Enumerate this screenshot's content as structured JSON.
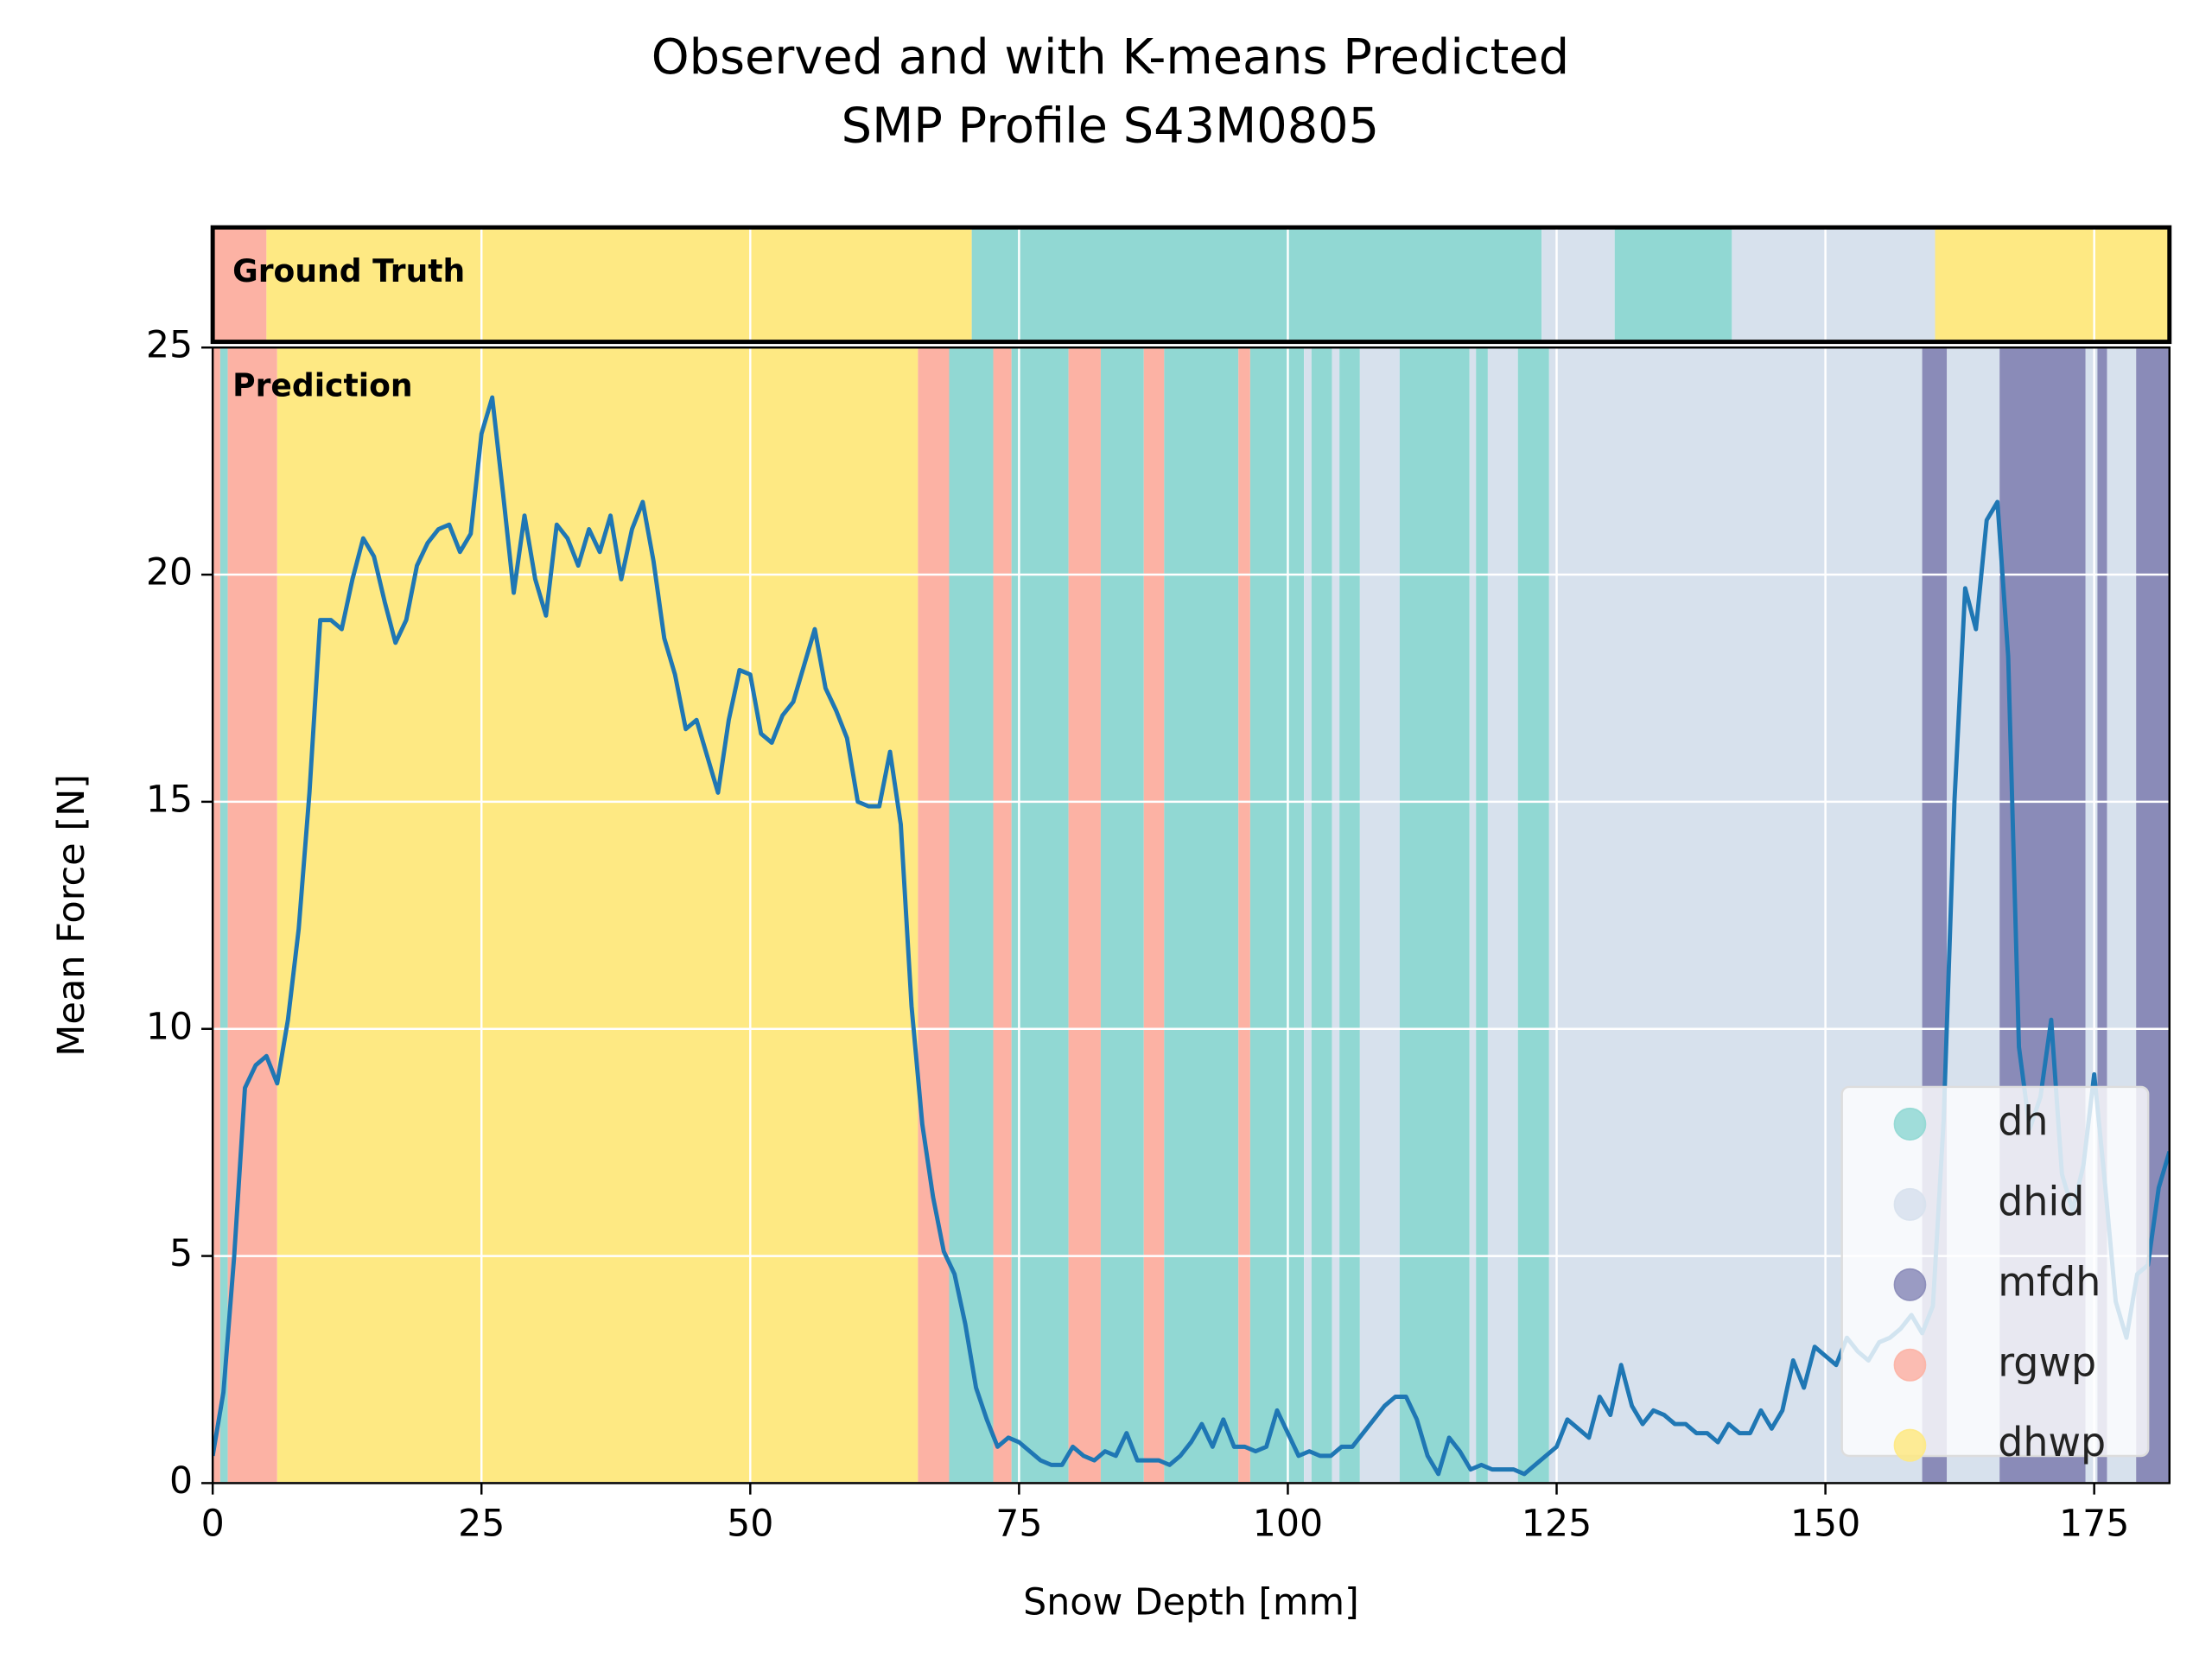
{
  "chart_data": {
    "type": "line",
    "title": [
      "Observed and with K-means Predicted",
      "SMP Profile S43M0805"
    ],
    "xlabel": "Snow Depth [mm]",
    "ylabel": "Mean Force [N]",
    "annotations": [
      "Ground Truth",
      "Prediction"
    ],
    "xlim": [
      0,
      182
    ],
    "ylim": [
      0,
      25
    ],
    "xticks": [
      0,
      25,
      50,
      75,
      100,
      125,
      150,
      175
    ],
    "yticks": [
      0,
      5,
      10,
      15,
      20,
      25
    ],
    "grid": true,
    "legend_position": "lower right",
    "classes": [
      {
        "name": "dh",
        "color": "#91d8d3"
      },
      {
        "name": "dhid",
        "color": "#d7e1ed"
      },
      {
        "name": "mfdh",
        "color": "#8a8bb8"
      },
      {
        "name": "rgwp",
        "color": "#fcb2a4"
      },
      {
        "name": "dhwp",
        "color": "#fee983"
      }
    ],
    "ground_truth": [
      {
        "class": "rgwp",
        "start": 0,
        "end": 5
      },
      {
        "class": "dhwp",
        "start": 5,
        "end": 70.6
      },
      {
        "class": "dh",
        "start": 70.6,
        "end": 123.6
      },
      {
        "class": "dhid",
        "start": 123.6,
        "end": 130.4
      },
      {
        "class": "dh",
        "start": 130.4,
        "end": 141.3
      },
      {
        "class": "dhid",
        "start": 141.3,
        "end": 160.2
      },
      {
        "class": "dhwp",
        "start": 160.2,
        "end": 182
      }
    ],
    "prediction": [
      {
        "class": "rgwp",
        "start": 0,
        "end": 0.7
      },
      {
        "class": "dh",
        "start": 0.7,
        "end": 1.4
      },
      {
        "class": "rgwp",
        "start": 1.4,
        "end": 6
      },
      {
        "class": "dhwp",
        "start": 6,
        "end": 65.6
      },
      {
        "class": "rgwp",
        "start": 65.6,
        "end": 68.5
      },
      {
        "class": "dh",
        "start": 68.5,
        "end": 72.6
      },
      {
        "class": "rgwp",
        "start": 72.6,
        "end": 74.3
      },
      {
        "class": "dh",
        "start": 74.3,
        "end": 79.6
      },
      {
        "class": "rgwp",
        "start": 79.6,
        "end": 82.6
      },
      {
        "class": "dh",
        "start": 82.6,
        "end": 86.6
      },
      {
        "class": "rgwp",
        "start": 86.6,
        "end": 88.5
      },
      {
        "class": "dh",
        "start": 88.5,
        "end": 95.4
      },
      {
        "class": "rgwp",
        "start": 95.4,
        "end": 96.5
      },
      {
        "class": "dh",
        "start": 96.5,
        "end": 101.5
      },
      {
        "class": "dhid",
        "start": 101.5,
        "end": 102.2
      },
      {
        "class": "dh",
        "start": 102.2,
        "end": 104.1
      },
      {
        "class": "dhid",
        "start": 104.1,
        "end": 104.8
      },
      {
        "class": "dh",
        "start": 104.8,
        "end": 106.7
      },
      {
        "class": "dhid",
        "start": 106.7,
        "end": 110.4
      },
      {
        "class": "dh",
        "start": 110.4,
        "end": 116.9
      },
      {
        "class": "dhid",
        "start": 116.9,
        "end": 117.5
      },
      {
        "class": "dh",
        "start": 117.5,
        "end": 118.6
      },
      {
        "class": "dhid",
        "start": 118.6,
        "end": 121.4
      },
      {
        "class": "dh",
        "start": 121.4,
        "end": 124.3
      },
      {
        "class": "dhid",
        "start": 124.3,
        "end": 159
      },
      {
        "class": "mfdh",
        "start": 159,
        "end": 161.3
      },
      {
        "class": "dhid",
        "start": 161.3,
        "end": 166.2
      },
      {
        "class": "mfdh",
        "start": 166.2,
        "end": 174.2
      },
      {
        "class": "dhid",
        "start": 174.2,
        "end": 175.3
      },
      {
        "class": "mfdh",
        "start": 175.3,
        "end": 176.2
      },
      {
        "class": "dhid",
        "start": 176.2,
        "end": 178.9
      },
      {
        "class": "mfdh",
        "start": 178.9,
        "end": 182
      }
    ],
    "x": [
      0,
      1,
      2,
      3,
      4,
      5,
      6,
      7,
      8,
      9,
      10,
      11,
      12,
      13,
      14,
      15,
      16,
      17,
      18,
      19,
      20,
      21,
      22,
      23,
      24,
      25,
      26,
      27,
      28,
      29,
      30,
      31,
      32,
      33,
      34,
      35,
      36,
      37,
      38,
      39,
      40,
      41,
      42,
      43,
      44,
      45,
      46,
      47,
      48,
      49,
      50,
      51,
      52,
      53,
      54,
      55,
      56,
      57,
      58,
      59,
      60,
      61,
      62,
      63,
      64,
      65,
      66,
      67,
      68,
      69,
      70,
      71,
      72,
      73,
      74,
      75,
      76,
      77,
      78,
      79,
      80,
      81,
      82,
      83,
      84,
      85,
      86,
      87,
      88,
      89,
      90,
      91,
      92,
      93,
      94,
      95,
      96,
      97,
      98,
      99,
      100,
      101,
      102,
      103,
      104,
      105,
      106,
      107,
      108,
      109,
      110,
      111,
      112,
      113,
      114,
      115,
      116,
      117,
      118,
      119,
      120,
      121,
      122,
      123,
      124,
      125,
      126,
      127,
      128,
      129,
      130,
      131,
      132,
      133,
      134,
      135,
      136,
      137,
      138,
      139,
      140,
      141,
      142,
      143,
      144,
      145,
      146,
      147,
      148,
      149,
      150,
      151,
      152,
      153,
      154,
      155,
      156,
      157,
      158,
      159,
      160,
      161,
      162,
      163,
      164,
      165,
      166,
      167,
      168,
      169,
      170,
      171,
      172,
      173,
      174,
      175,
      176,
      177,
      178,
      179,
      180,
      181,
      182
    ],
    "series": [
      {
        "color": "#1f77b4",
        "values": [
          0.6,
          2.0,
          5.0,
          8.7,
          9.2,
          9.4,
          8.8,
          10.2,
          12.2,
          15.2,
          19.0,
          19.0,
          18.8,
          19.9,
          20.8,
          20.4,
          19.4,
          18.5,
          19.0,
          20.2,
          20.7,
          21.0,
          21.1,
          20.5,
          20.9,
          23.1,
          23.9,
          21.8,
          19.6,
          21.3,
          19.9,
          19.1,
          21.1,
          20.8,
          20.2,
          21.0,
          20.5,
          21.3,
          19.9,
          21.0,
          21.6,
          20.3,
          18.6,
          17.8,
          16.6,
          16.8,
          16.0,
          15.2,
          16.8,
          17.9,
          17.8,
          16.5,
          16.3,
          16.9,
          17.2,
          18.0,
          18.8,
          17.5,
          17.0,
          16.4,
          15.0,
          14.9,
          14.9,
          16.1,
          14.5,
          10.5,
          7.9,
          6.3,
          5.1,
          4.6,
          3.5,
          2.1,
          1.4,
          0.8,
          1.0,
          0.9,
          0.7,
          0.5,
          0.4,
          0.4,
          0.8,
          0.6,
          0.5,
          0.7,
          0.6,
          1.1,
          0.5,
          0.5,
          0.5,
          0.4,
          0.6,
          0.9,
          1.3,
          0.8,
          1.4,
          0.8,
          0.8,
          0.7,
          0.8,
          1.6,
          1.1,
          0.6,
          0.7,
          0.6,
          0.6,
          0.8,
          0.8,
          1.1,
          1.4,
          1.7,
          1.9,
          1.9,
          1.4,
          0.6,
          0.2,
          1.0,
          0.7,
          0.3,
          0.4,
          0.3,
          0.3,
          0.3,
          0.2,
          0.4,
          0.6,
          0.8,
          1.4,
          1.2,
          1.0,
          1.9,
          1.5,
          2.6,
          1.7,
          1.3,
          1.6,
          1.5,
          1.3,
          1.3,
          1.1,
          1.1,
          0.9,
          1.3,
          1.1,
          1.1,
          1.6,
          1.2,
          1.6,
          2.7,
          2.1,
          3.0,
          2.8,
          2.6,
          3.2,
          2.9,
          2.7,
          3.1,
          3.2,
          3.4,
          3.7,
          3.3,
          3.9,
          8.0,
          15.0,
          19.7,
          18.8,
          21.2,
          21.6,
          18.2,
          9.6,
          7.8,
          8.5,
          10.2,
          6.8,
          6.0,
          7.0,
          9.0,
          6.6,
          4.0,
          3.2,
          4.6,
          4.8,
          6.5,
          7.3
        ]
      }
    ]
  }
}
